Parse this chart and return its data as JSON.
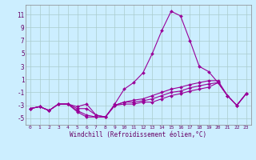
{
  "xlabel": "Windchill (Refroidissement éolien,°C)",
  "background_color": "#cceeff",
  "grid_color": "#aacccc",
  "line_color": "#990099",
  "marker_color": "#990099",
  "xlim": [
    -0.5,
    23.5
  ],
  "ylim": [
    -6.0,
    12.5
  ],
  "yticks": [
    -5,
    -3,
    -1,
    1,
    3,
    5,
    7,
    9,
    11
  ],
  "xticks": [
    0,
    1,
    2,
    3,
    4,
    5,
    6,
    7,
    8,
    9,
    10,
    11,
    12,
    13,
    14,
    15,
    16,
    17,
    18,
    19,
    20,
    21,
    22,
    23
  ],
  "series": [
    [
      -3.5,
      -3.2,
      -3.8,
      -2.8,
      -2.8,
      -4.0,
      -4.8,
      -4.8,
      -4.8,
      -2.8,
      -0.5,
      0.5,
      2.0,
      5.0,
      8.5,
      11.5,
      10.8,
      7.0,
      3.0,
      2.2,
      0.5,
      -1.5,
      -3.0,
      -1.2
    ],
    [
      -3.5,
      -3.2,
      -3.8,
      -2.8,
      -2.8,
      -3.2,
      -2.8,
      -4.5,
      -4.8,
      -3.0,
      -2.5,
      -2.2,
      -2.0,
      -1.5,
      -1.0,
      -0.5,
      -0.2,
      0.2,
      0.5,
      0.8,
      0.8,
      -1.5,
      -3.0,
      -1.2
    ],
    [
      -3.5,
      -3.2,
      -3.8,
      -2.8,
      -2.8,
      -3.5,
      -3.5,
      -4.5,
      -4.8,
      -3.0,
      -2.5,
      -2.5,
      -2.3,
      -2.0,
      -1.5,
      -1.0,
      -0.8,
      -0.3,
      0.0,
      0.3,
      0.5,
      -1.5,
      -3.0,
      -1.2
    ],
    [
      -3.5,
      -3.2,
      -3.8,
      -2.8,
      -2.8,
      -3.8,
      -4.5,
      -4.8,
      -4.8,
      -3.0,
      -2.8,
      -2.8,
      -2.5,
      -2.5,
      -2.0,
      -1.5,
      -1.2,
      -0.8,
      -0.5,
      -0.2,
      0.5,
      -1.5,
      -3.0,
      -1.2
    ]
  ]
}
